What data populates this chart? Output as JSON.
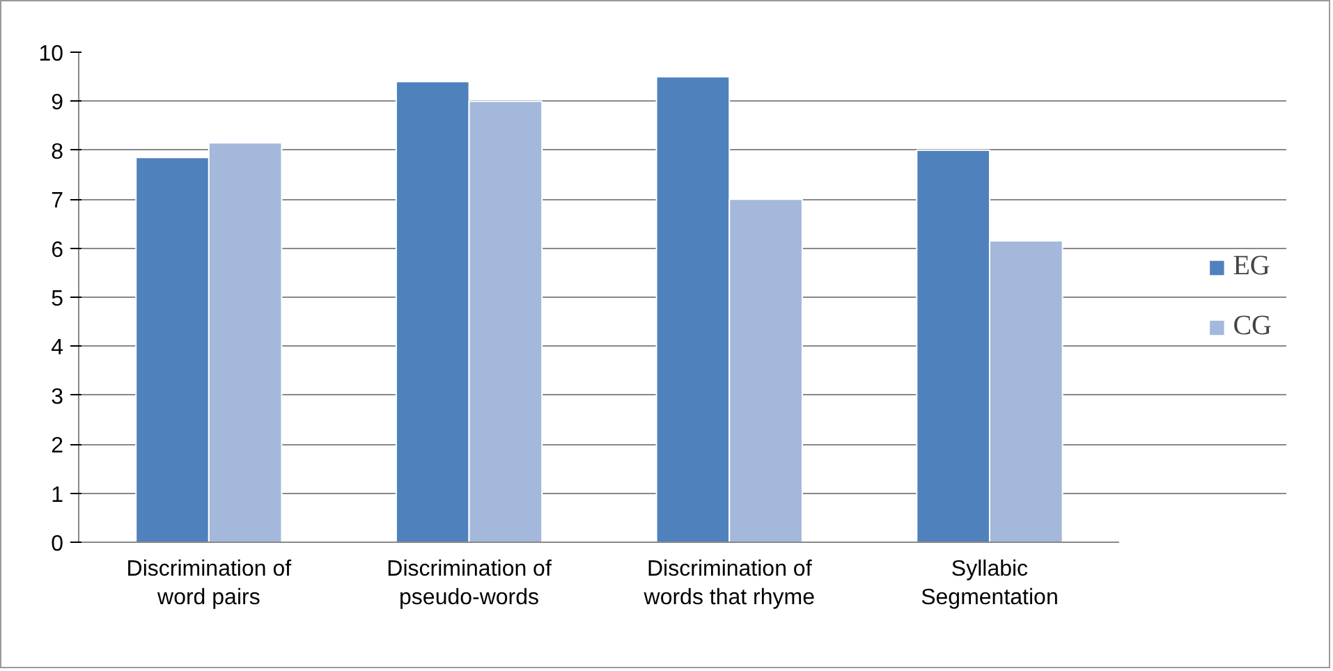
{
  "chart_data": {
    "type": "bar",
    "categories": [
      "Discrimination of word pairs",
      "Discrimination of pseudo-words",
      "Discrimination of words that rhyme",
      "Syllabic Segmentation"
    ],
    "series": [
      {
        "name": "EG",
        "color": "#4f81bd",
        "values": [
          7.85,
          9.4,
          9.5,
          8.0
        ]
      },
      {
        "name": "CG",
        "color": "#a3b8da",
        "values": [
          8.15,
          9.0,
          7.0,
          6.15
        ]
      }
    ],
    "ylim": [
      0,
      10
    ],
    "yticks": [
      0,
      1,
      2,
      3,
      4,
      5,
      6,
      7,
      8,
      9,
      10
    ],
    "grid": "y",
    "legend": "right"
  }
}
